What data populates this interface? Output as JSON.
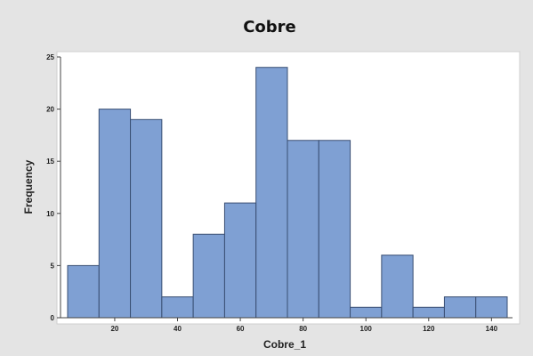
{
  "chart_data": {
    "type": "bar",
    "title": "Cobre",
    "xlabel": "Cobre_1",
    "ylabel": "Frequency",
    "bin_width": 10,
    "bins": [
      {
        "start": 5,
        "end": 15,
        "value": 5
      },
      {
        "start": 15,
        "end": 25,
        "value": 20
      },
      {
        "start": 25,
        "end": 35,
        "value": 19
      },
      {
        "start": 35,
        "end": 45,
        "value": 2
      },
      {
        "start": 45,
        "end": 55,
        "value": 8
      },
      {
        "start": 55,
        "end": 65,
        "value": 11
      },
      {
        "start": 65,
        "end": 75,
        "value": 24
      },
      {
        "start": 75,
        "end": 85,
        "value": 17
      },
      {
        "start": 85,
        "end": 95,
        "value": 17
      },
      {
        "start": 95,
        "end": 105,
        "value": 1
      },
      {
        "start": 105,
        "end": 115,
        "value": 6
      },
      {
        "start": 115,
        "end": 125,
        "value": 1
      },
      {
        "start": 125,
        "end": 135,
        "value": 2
      },
      {
        "start": 135,
        "end": 145,
        "value": 2
      }
    ],
    "xlim": [
      5,
      145
    ],
    "ylim": [
      0,
      25
    ],
    "x_ticks": [
      "20",
      "40",
      "60",
      "80",
      "100",
      "120",
      "140"
    ],
    "y_ticks": [
      "0",
      "5",
      "10",
      "15",
      "20",
      "25"
    ],
    "grid": false,
    "bar_color": "#7fa0d3",
    "bar_edge_color": "#3a4f73",
    "background_color": "#e4e4e4",
    "plot_background_color": "#ffffff"
  }
}
